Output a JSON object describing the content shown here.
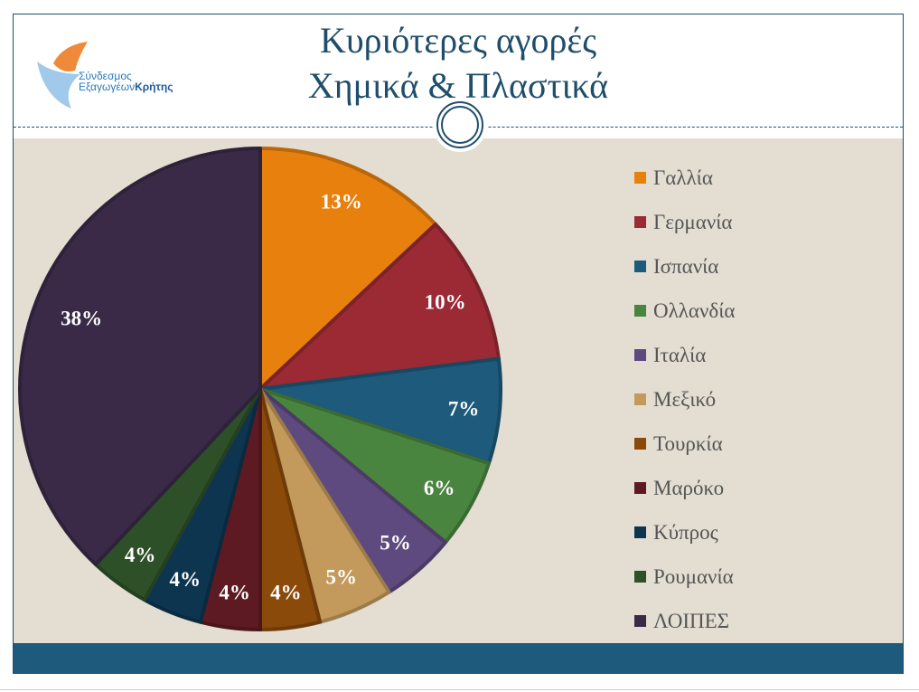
{
  "title_line1": "Κυριότερες αγορές",
  "title_line2": "Χημικά & Πλαστικά",
  "logo": {
    "line1": "Σύνδεσμος",
    "line2a": "Εξαγωγέων",
    "line2b": "Κρήτης"
  },
  "chart_data": {
    "type": "pie",
    "title": "",
    "start": "top",
    "direction": "clockwise",
    "legend_position": "right",
    "categories": [
      "Γαλλία",
      "Γερμανία",
      "Ισπανία",
      "Ολλανδία",
      "Ιταλία",
      "Μεξικό",
      "Τουρκία",
      "Μαρόκο",
      "Κύπρος",
      "Ρουμανία",
      "ΛΟΙΠΕΣ"
    ],
    "values": [
      13,
      10,
      7,
      6,
      5,
      5,
      4,
      4,
      4,
      4,
      38
    ],
    "labels": [
      "13%",
      "10%",
      "7%",
      "6%",
      "5%",
      "5%",
      "4%",
      "4%",
      "4%",
      "4%",
      "38%"
    ],
    "colors": [
      "#e8800e",
      "#9b2a35",
      "#1d5a7c",
      "#4a8540",
      "#5e4a7e",
      "#c39a5c",
      "#8a4a0a",
      "#5e1a22",
      "#0e3550",
      "#2e5028",
      "#3a2a48"
    ]
  }
}
